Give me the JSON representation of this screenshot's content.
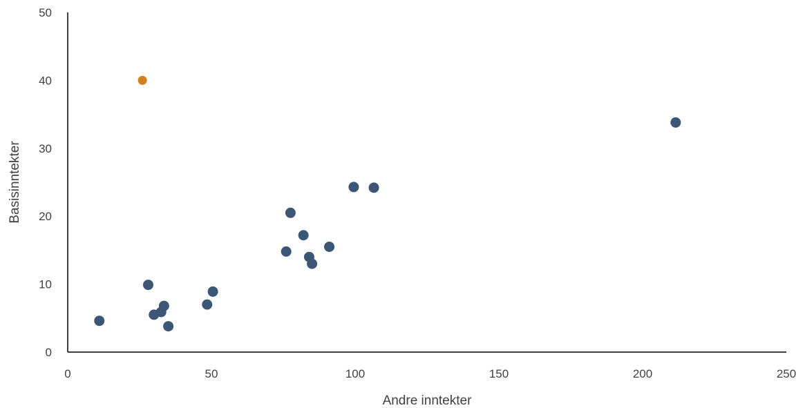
{
  "chart_data": {
    "type": "scatter",
    "title": "",
    "xlabel": "Andre inntekter",
    "ylabel": "Basisinntekter",
    "xlim": [
      0,
      250
    ],
    "ylim": [
      0,
      50
    ],
    "x_ticks": [
      0,
      50,
      100,
      150,
      200,
      250
    ],
    "y_ticks": [
      0,
      10,
      20,
      30,
      40,
      50
    ],
    "grid": false,
    "legend": "none",
    "series": [
      {
        "color": "#3c5675",
        "points": [
          {
            "x": 11,
            "y": 4.6
          },
          {
            "x": 28,
            "y": 9.9
          },
          {
            "x": 30,
            "y": 5.5
          },
          {
            "x": 32.5,
            "y": 5.9
          },
          {
            "x": 33.5,
            "y": 6.8
          },
          {
            "x": 35,
            "y": 3.8
          },
          {
            "x": 48.5,
            "y": 7.0
          },
          {
            "x": 50.5,
            "y": 8.9
          },
          {
            "x": 76,
            "y": 14.8
          },
          {
            "x": 77.5,
            "y": 20.5
          },
          {
            "x": 82,
            "y": 17.2
          },
          {
            "x": 84,
            "y": 14.0
          },
          {
            "x": 85,
            "y": 13.0
          },
          {
            "x": 91,
            "y": 15.5
          },
          {
            "x": 99.5,
            "y": 24.3
          },
          {
            "x": 106.5,
            "y": 24.2
          },
          {
            "x": 211.5,
            "y": 33.8
          }
        ]
      },
      {
        "color": "#d0801f",
        "points": [
          {
            "x": 26,
            "y": 40.0
          }
        ]
      }
    ]
  }
}
